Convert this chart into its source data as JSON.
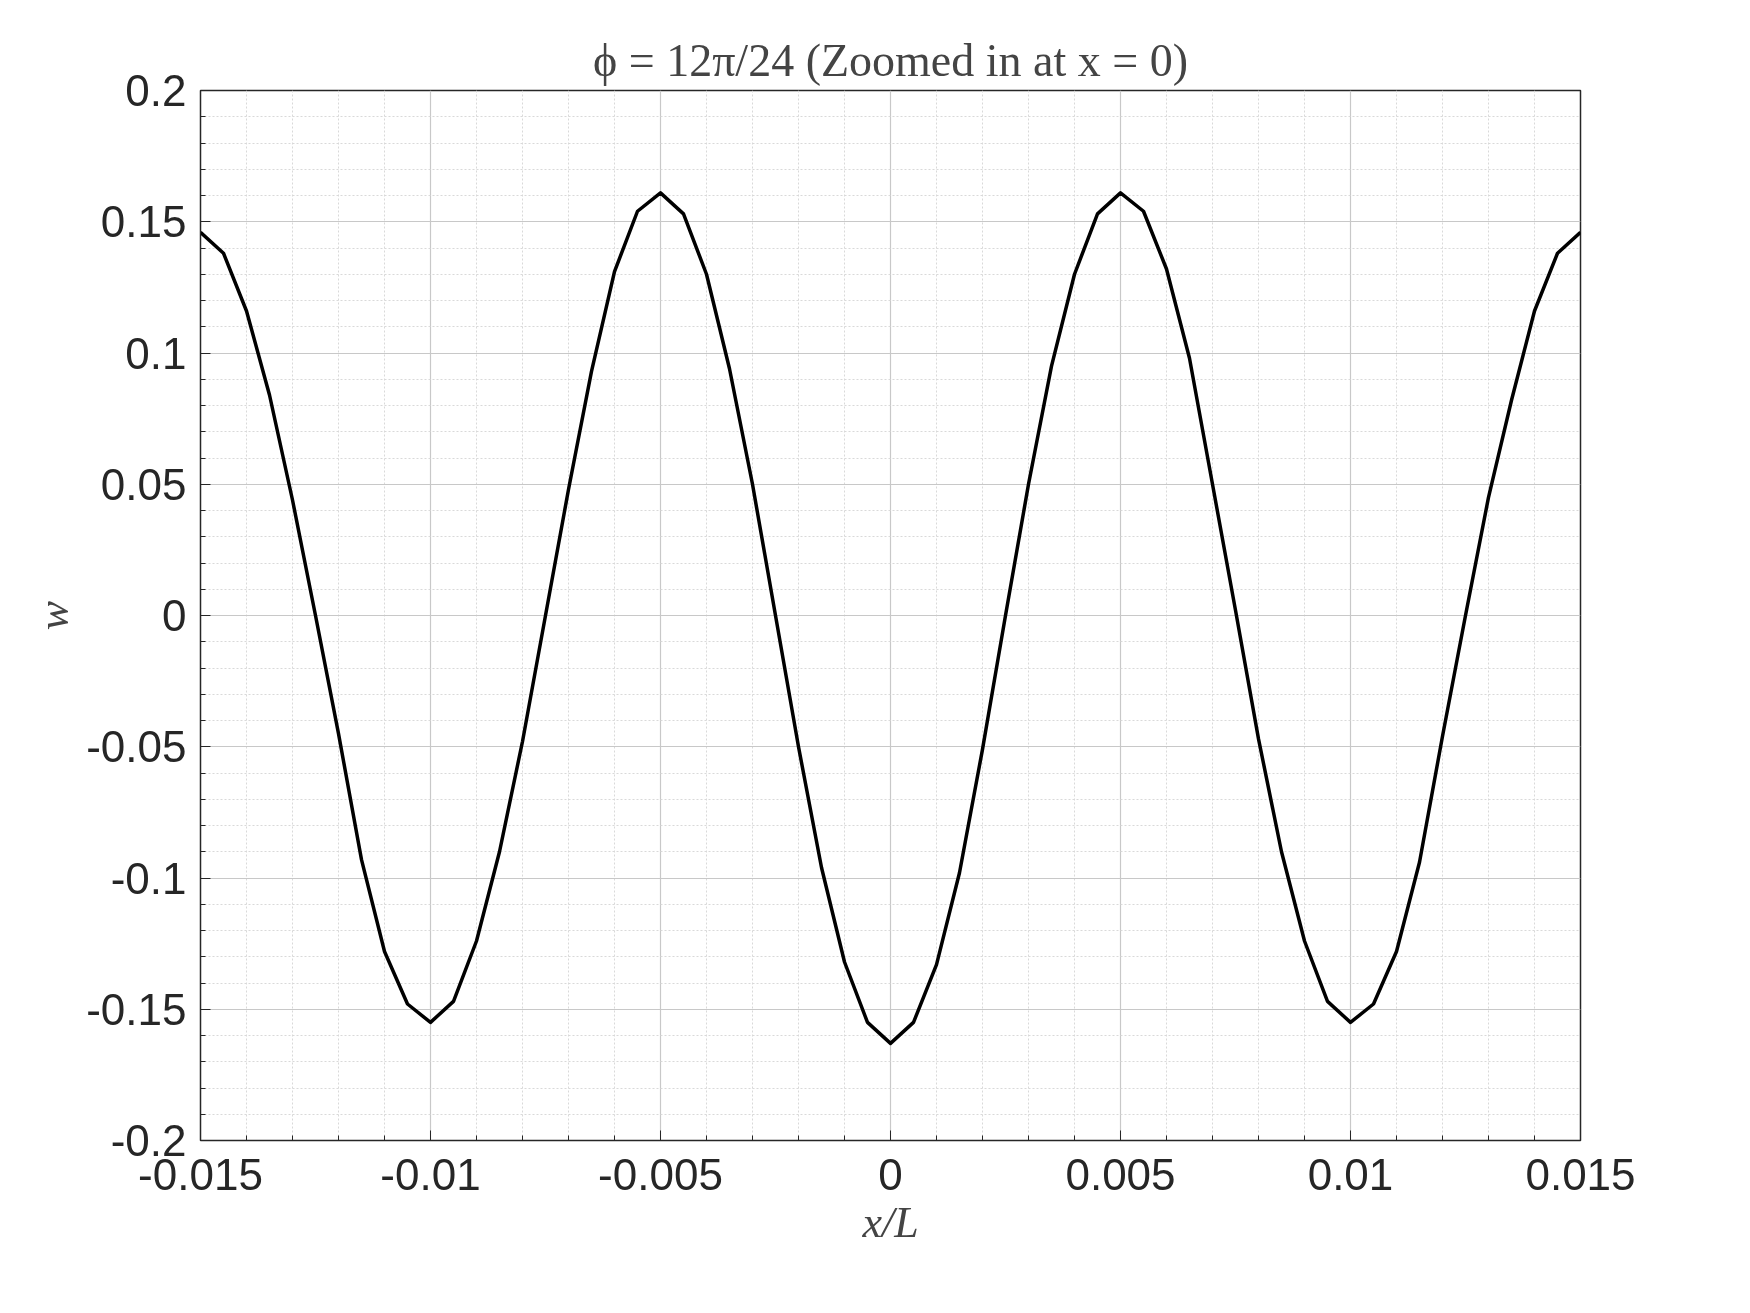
{
  "chart_data": {
    "type": "line",
    "title": "ϕ = 12π/24 (Zoomed in at x = 0)",
    "xlabel": "x/L",
    "ylabel": "w",
    "x": [
      -0.015,
      -0.0145,
      -0.014,
      -0.0135,
      -0.013,
      -0.0125,
      -0.012,
      -0.0115,
      -0.011,
      -0.0105,
      -0.01,
      -0.0095,
      -0.009,
      -0.0085,
      -0.008,
      -0.0075,
      -0.007,
      -0.0065,
      -0.006,
      -0.0055,
      -0.005,
      -0.0045,
      -0.004,
      -0.0035,
      -0.003,
      -0.0025,
      -0.002,
      -0.0015,
      -0.001,
      -0.0005,
      0,
      0.0005,
      0.001,
      0.0015,
      0.002,
      0.0025,
      0.003,
      0.0035,
      0.004,
      0.0045,
      0.005,
      0.0055,
      0.006,
      0.0065,
      0.007,
      0.0075,
      0.008,
      0.0085,
      0.009,
      0.0095,
      0.01,
      0.0105,
      0.011,
      0.0115,
      0.012,
      0.0125,
      0.013,
      0.0135,
      0.014,
      0.0145,
      0.015
    ],
    "series": [
      {
        "color": "#000000",
        "values": [
          0.146,
          0.138,
          0.116,
          0.084,
          0.044,
          0.0,
          -0.045,
          -0.093,
          -0.128,
          -0.148,
          -0.155,
          -0.147,
          -0.124,
          -0.09,
          -0.048,
          0.0,
          0.048,
          0.093,
          0.131,
          0.154,
          0.161,
          0.153,
          0.13,
          0.094,
          0.05,
          0.0,
          -0.05,
          -0.096,
          -0.132,
          -0.155,
          -0.163,
          -0.155,
          -0.133,
          -0.098,
          -0.051,
          0.0,
          0.05,
          0.095,
          0.13,
          0.153,
          0.161,
          0.154,
          0.132,
          0.098,
          0.05,
          0.002,
          -0.047,
          -0.09,
          -0.124,
          -0.147,
          -0.155,
          -0.148,
          -0.128,
          -0.094,
          -0.046,
          0.0,
          0.045,
          0.082,
          0.116,
          0.138,
          0.146
        ]
      }
    ],
    "xlim": [
      -0.015,
      0.015
    ],
    "xticks": [
      -0.015,
      -0.01,
      -0.005,
      0,
      0.005,
      0.01,
      0.015
    ],
    "ylim": [
      -0.2,
      0.2
    ],
    "yticks": [
      -0.2,
      -0.15,
      -0.1,
      -0.05,
      0,
      0.05,
      0.1,
      0.15,
      0.2
    ],
    "grid": true,
    "marker": "none",
    "line_style": "solid"
  }
}
